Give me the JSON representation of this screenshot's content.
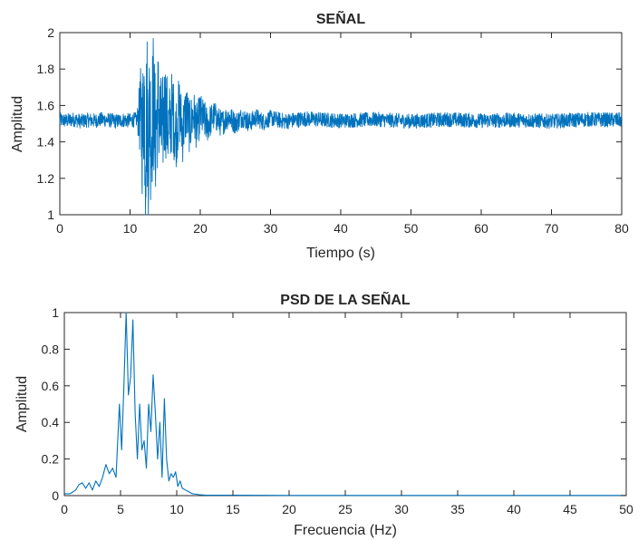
{
  "chart_data": [
    {
      "type": "line",
      "title": "SEÑAL",
      "xlabel": "Tiempo (s)",
      "ylabel": "Amplitud",
      "xlim": [
        0,
        80
      ],
      "ylim": [
        1,
        2
      ],
      "xticks": [
        0,
        10,
        20,
        30,
        40,
        50,
        60,
        70,
        80
      ],
      "yticks": [
        1,
        1.2,
        1.4,
        1.6,
        1.8,
        2
      ],
      "xticklabels": [
        "0",
        "10",
        "20",
        "30",
        "40",
        "50",
        "60",
        "70",
        "80"
      ],
      "yticklabels": [
        "1",
        "1.2",
        "1.4",
        "1.6",
        "1.8",
        "2"
      ],
      "grid": false,
      "color": "#0072BD",
      "series": [
        {
          "x": [
            0,
            1,
            2,
            3,
            4,
            5,
            6,
            7,
            8,
            9,
            10,
            11,
            11.5,
            11.8,
            12,
            12.2,
            12.4,
            12.6,
            12.8,
            13,
            13.3,
            13.6,
            14,
            14.5,
            15,
            15.5,
            16,
            16.5,
            17,
            17.5,
            18,
            18.5,
            19,
            19.5,
            20,
            21,
            22,
            23,
            24,
            25,
            26,
            27,
            28,
            29,
            30,
            32,
            35,
            40,
            45,
            50,
            55,
            60,
            65,
            70,
            75,
            80
          ],
          "y": [
            1.52,
            1.51,
            1.53,
            1.5,
            1.52,
            1.51,
            1.53,
            1.52,
            1.5,
            1.52,
            1.51,
            1.53,
            1.6,
            1.3,
            1.99,
            1.01,
            1.82,
            1.15,
            1.77,
            1.2,
            1.86,
            1.25,
            1.78,
            1.28,
            1.75,
            1.33,
            1.7,
            1.31,
            1.68,
            1.34,
            1.67,
            1.4,
            1.62,
            1.42,
            1.6,
            1.45,
            1.59,
            1.46,
            1.58,
            1.47,
            1.57,
            1.48,
            1.56,
            1.49,
            1.55,
            1.5,
            1.54,
            1.51,
            1.53,
            1.5,
            1.53,
            1.51,
            1.52,
            1.5,
            1.53,
            1.52
          ],
          "envelope": {
            "x": [
              0,
              11,
              11.8,
              12.5,
              14,
              16,
              18,
              20,
              22,
              25,
              28,
              30,
              40,
              80
            ],
            "half_width": [
              0.04,
              0.04,
              0.4,
              0.44,
              0.32,
              0.22,
              0.16,
              0.12,
              0.08,
              0.06,
              0.05,
              0.045,
              0.04,
              0.04
            ]
          }
        }
      ]
    },
    {
      "type": "line",
      "title": "PSD DE LA SEÑAL",
      "xlabel": "Frecuencia (Hz)",
      "ylabel": "Amplitud",
      "xlim": [
        0,
        50
      ],
      "ylim": [
        0,
        1
      ],
      "xticks": [
        0,
        5,
        10,
        15,
        20,
        25,
        30,
        35,
        40,
        45,
        50
      ],
      "yticks": [
        0,
        0.2,
        0.4,
        0.6,
        0.8,
        1
      ],
      "xticklabels": [
        "0",
        "5",
        "10",
        "15",
        "20",
        "25",
        "30",
        "35",
        "40",
        "45",
        "50"
      ],
      "yticklabels": [
        "0",
        "0.2",
        "0.4",
        "0.6",
        "0.8",
        "1"
      ],
      "grid": false,
      "color": "#0072BD",
      "series": [
        {
          "x": [
            0,
            0.5,
            1.0,
            1.3,
            1.6,
            1.9,
            2.2,
            2.5,
            2.8,
            3.1,
            3.4,
            3.7,
            4.0,
            4.3,
            4.6,
            4.9,
            5.1,
            5.3,
            5.5,
            5.7,
            5.9,
            6.1,
            6.3,
            6.5,
            6.7,
            6.9,
            7.1,
            7.3,
            7.5,
            7.7,
            7.9,
            8.1,
            8.3,
            8.5,
            8.7,
            8.9,
            9.1,
            9.3,
            9.5,
            9.7,
            9.9,
            10.1,
            10.3,
            10.5,
            10.8,
            11.1,
            11.4,
            11.7,
            12.0,
            12.5,
            13,
            15,
            20,
            30,
            40,
            50
          ],
          "y": [
            0.01,
            0.01,
            0.03,
            0.06,
            0.07,
            0.04,
            0.07,
            0.03,
            0.08,
            0.05,
            0.1,
            0.17,
            0.12,
            0.15,
            0.1,
            0.5,
            0.25,
            0.6,
            1.0,
            0.55,
            0.65,
            0.96,
            0.45,
            0.2,
            0.5,
            0.25,
            0.3,
            0.15,
            0.5,
            0.35,
            0.66,
            0.45,
            0.2,
            0.4,
            0.1,
            0.53,
            0.2,
            0.08,
            0.12,
            0.1,
            0.13,
            0.05,
            0.08,
            0.04,
            0.03,
            0.02,
            0.01,
            0.008,
            0.005,
            0.003,
            0.002,
            0.002,
            0.001,
            0.001,
            0.001,
            0.001
          ]
        }
      ]
    }
  ]
}
